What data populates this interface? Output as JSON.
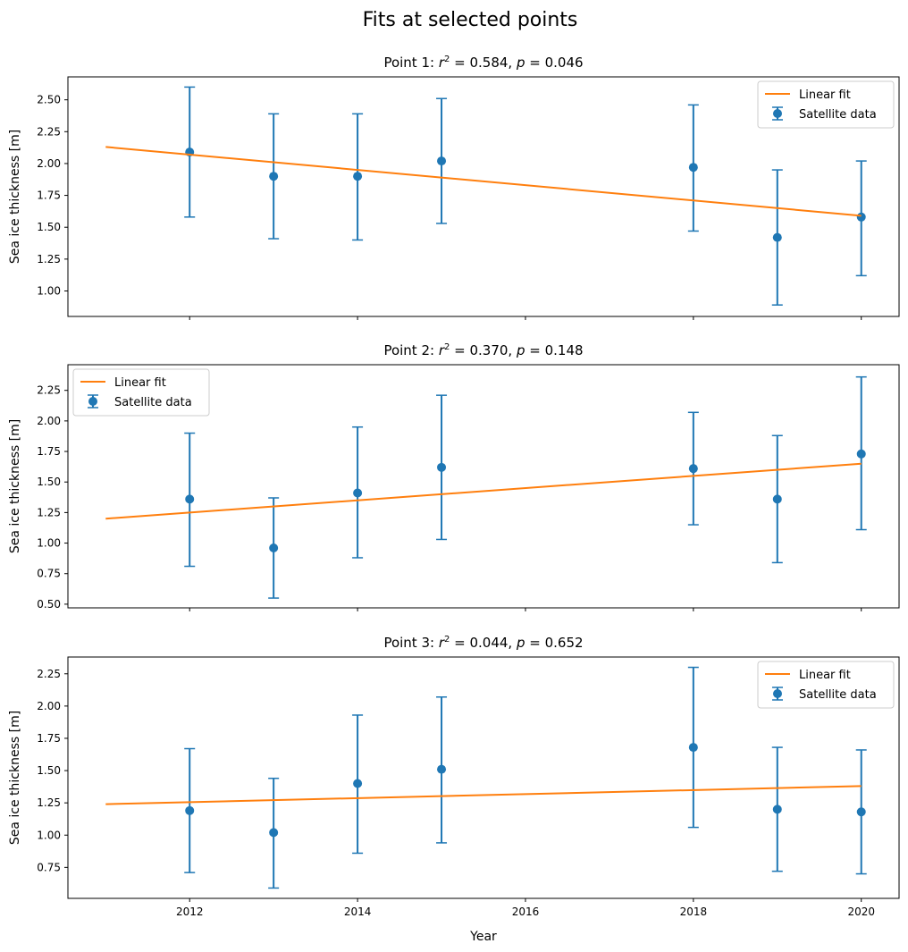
{
  "title": "Fits at selected points",
  "colors": {
    "data": "#1f77b4",
    "fit": "#ff7f0e",
    "axes": "#000000",
    "legend_border": "#cccccc"
  },
  "chart_data": [
    {
      "type": "scatter",
      "title": "Point 1: r² = 0.584, p = 0.046",
      "title_parts": {
        "prefix": "Point 1: ",
        "r2_symbol": "r",
        "r2_exp": "2",
        "r2_text": " = 0.584, ",
        "p_symbol": "p",
        "p_text": " = 0.046"
      },
      "xlabel": "",
      "ylabel": "Sea ice thickness [m]",
      "xlim": [
        2010.55,
        2020.45
      ],
      "ylim": [
        0.8,
        2.68
      ],
      "yticks": [
        1.0,
        1.25,
        1.5,
        1.75,
        2.0,
        2.25,
        2.5
      ],
      "ytick_labels": [
        "1.00",
        "1.25",
        "1.50",
        "1.75",
        "2.00",
        "2.25",
        "2.50"
      ],
      "xticks": [
        2012,
        2014,
        2016,
        2018,
        2020
      ],
      "xtick_labels": [],
      "legend": {
        "position": "upper-right",
        "entries": [
          "Linear fit",
          "Satellite data"
        ]
      },
      "series": [
        {
          "name": "Satellite data",
          "kind": "errorbar",
          "x": [
            2012,
            2013,
            2014,
            2015,
            2018,
            2019,
            2020
          ],
          "y": [
            2.09,
            1.9,
            1.9,
            2.02,
            1.97,
            1.42,
            1.58
          ],
          "yerr_low": [
            1.58,
            1.41,
            1.4,
            1.53,
            1.47,
            0.89,
            1.12
          ],
          "yerr_high": [
            2.6,
            2.39,
            2.39,
            2.51,
            2.46,
            1.95,
            2.02
          ]
        },
        {
          "name": "Linear fit",
          "kind": "line",
          "x": [
            2011,
            2020
          ],
          "y": [
            2.13,
            1.59
          ]
        }
      ]
    },
    {
      "type": "scatter",
      "title": "Point 2: r² = 0.370, p = 0.148",
      "title_parts": {
        "prefix": "Point 2: ",
        "r2_symbol": "r",
        "r2_exp": "2",
        "r2_text": " = 0.370, ",
        "p_symbol": "p",
        "p_text": " = 0.148"
      },
      "xlabel": "",
      "ylabel": "Sea ice thickness [m]",
      "xlim": [
        2010.55,
        2020.45
      ],
      "ylim": [
        0.47,
        2.46
      ],
      "yticks": [
        0.5,
        0.75,
        1.0,
        1.25,
        1.5,
        1.75,
        2.0,
        2.25
      ],
      "ytick_labels": [
        "0.50",
        "0.75",
        "1.00",
        "1.25",
        "1.50",
        "1.75",
        "2.00",
        "2.25"
      ],
      "xticks": [
        2012,
        2014,
        2016,
        2018,
        2020
      ],
      "xtick_labels": [],
      "legend": {
        "position": "upper-left",
        "entries": [
          "Linear fit",
          "Satellite data"
        ]
      },
      "series": [
        {
          "name": "Satellite data",
          "kind": "errorbar",
          "x": [
            2012,
            2013,
            2014,
            2015,
            2018,
            2019,
            2020
          ],
          "y": [
            1.36,
            0.96,
            1.41,
            1.62,
            1.61,
            1.36,
            1.73
          ],
          "yerr_low": [
            0.81,
            0.55,
            0.88,
            1.03,
            1.15,
            0.84,
            1.11
          ],
          "yerr_high": [
            1.9,
            1.37,
            1.95,
            2.21,
            2.07,
            1.88,
            2.36
          ]
        },
        {
          "name": "Linear fit",
          "kind": "line",
          "x": [
            2011,
            2020
          ],
          "y": [
            1.2,
            1.65
          ]
        }
      ]
    },
    {
      "type": "scatter",
      "title": "Point 3: r² = 0.044, p = 0.652",
      "title_parts": {
        "prefix": "Point 3: ",
        "r2_symbol": "r",
        "r2_exp": "2",
        "r2_text": " = 0.044, ",
        "p_symbol": "p",
        "p_text": " = 0.652"
      },
      "xlabel": "Year",
      "ylabel": "Sea ice thickness [m]",
      "xlim": [
        2010.55,
        2020.45
      ],
      "ylim": [
        0.51,
        2.38
      ],
      "yticks": [
        0.75,
        1.0,
        1.25,
        1.5,
        1.75,
        2.0,
        2.25
      ],
      "ytick_labels": [
        "0.75",
        "1.00",
        "1.25",
        "1.50",
        "1.75",
        "2.00",
        "2.25"
      ],
      "xticks": [
        2012,
        2014,
        2016,
        2018,
        2020
      ],
      "xtick_labels": [
        "2012",
        "2014",
        "2016",
        "2018",
        "2020"
      ],
      "legend": {
        "position": "upper-right",
        "entries": [
          "Linear fit",
          "Satellite data"
        ]
      },
      "series": [
        {
          "name": "Satellite data",
          "kind": "errorbar",
          "x": [
            2012,
            2013,
            2014,
            2015,
            2018,
            2019,
            2020
          ],
          "y": [
            1.19,
            1.02,
            1.4,
            1.51,
            1.68,
            1.2,
            1.18
          ],
          "yerr_low": [
            0.71,
            0.59,
            0.86,
            0.94,
            1.06,
            0.72,
            0.7
          ],
          "yerr_high": [
            1.67,
            1.44,
            1.93,
            2.07,
            2.3,
            1.68,
            1.66
          ]
        },
        {
          "name": "Linear fit",
          "kind": "line",
          "x": [
            2011,
            2020
          ],
          "y": [
            1.24,
            1.38
          ]
        }
      ]
    }
  ]
}
